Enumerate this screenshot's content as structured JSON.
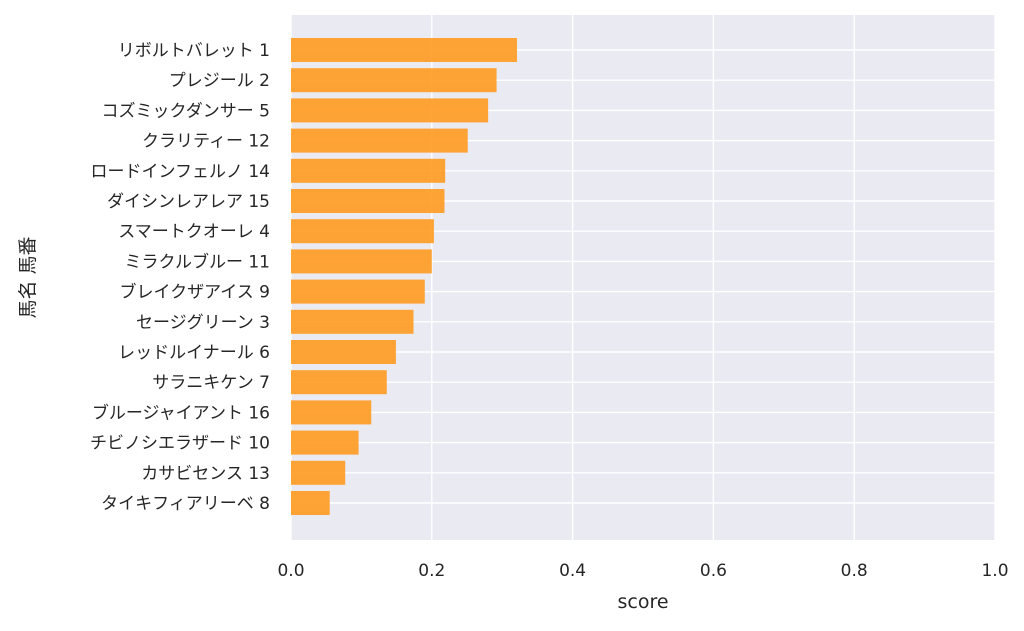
{
  "chart_data": {
    "type": "bar",
    "orientation": "horizontal",
    "categories": [
      "リボルトバレット 1",
      "プレジール 2",
      "コズミックダンサー 5",
      "クラリティー 12",
      "ロードインフェルノ 14",
      "ダイシンレアレア 15",
      "スマートクオーレ 4",
      "ミラクルブルー 11",
      "ブレイクザアイス 9",
      "セージグリーン 3",
      "レッドルイナール 6",
      "サラニキケン 7",
      "ブルージャイアント 16",
      "チビノシエラザード 10",
      "カサビセンス 13",
      "タイキフィアリーベ 8"
    ],
    "values": [
      0.321,
      0.292,
      0.28,
      0.251,
      0.219,
      0.218,
      0.203,
      0.2,
      0.19,
      0.174,
      0.149,
      0.136,
      0.114,
      0.096,
      0.077,
      0.055
    ],
    "xlabel": "score",
    "ylabel": "馬名 馬番",
    "xlim": [
      0.0,
      1.0
    ],
    "xticks": [
      "0.0",
      "0.2",
      "0.4",
      "0.6",
      "0.8",
      "1.0"
    ],
    "grid": true,
    "colors": {
      "bar": "#ff9a1f",
      "plot_background": "#eaeaf2",
      "grid": "#ffffff"
    }
  }
}
